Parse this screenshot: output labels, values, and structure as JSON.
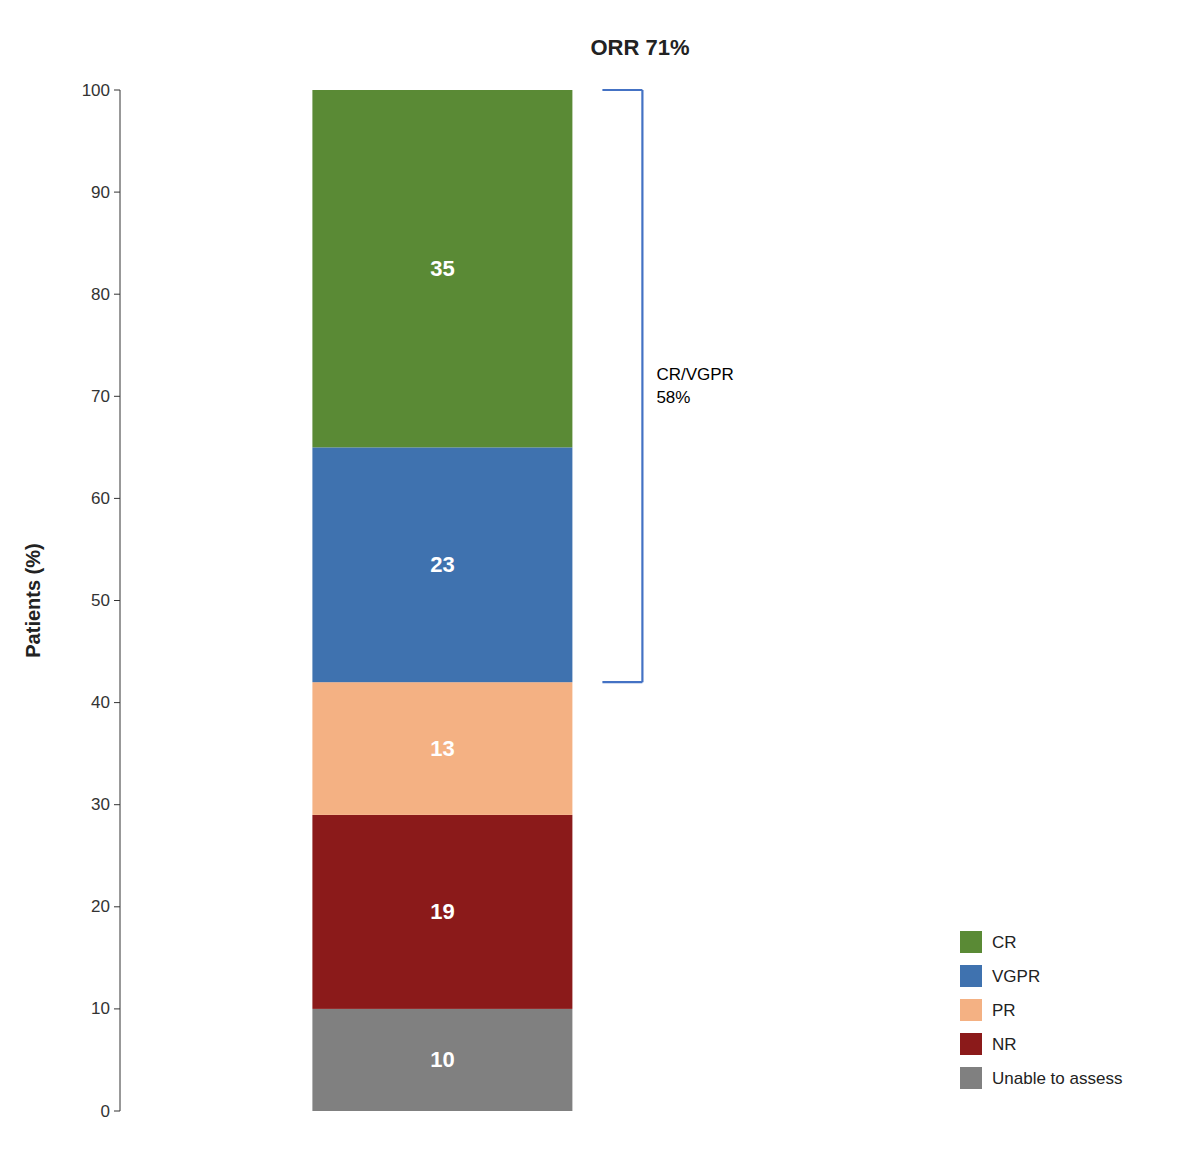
{
  "chart_data": {
    "type": "bar",
    "title": "ORR 71%",
    "ylabel": "Patients (%)",
    "categories": [
      null
    ],
    "series": [
      {
        "name": "Unable to assess",
        "color": "#808080",
        "values": [
          10
        ]
      },
      {
        "name": "NR",
        "color": "#8B1A1A",
        "values": [
          19
        ]
      },
      {
        "name": "PR",
        "color": "#F4B183",
        "values": [
          13
        ]
      },
      {
        "name": "VGPR",
        "color": "#3F72AF",
        "values": [
          23
        ]
      },
      {
        "name": "CR",
        "color": "#5A8A35",
        "values": [
          35
        ]
      }
    ],
    "stacked": true,
    "data_labels": true,
    "grid": false,
    "legend": "lower right",
    "tick_labels": "y",
    "ylim": [
      0,
      100
    ],
    "yticks": [
      0,
      10,
      20,
      30,
      40,
      50,
      60,
      70,
      80,
      90,
      100
    ],
    "annotations": [
      {
        "lines": [
          "CR/VGPR",
          "58%"
        ],
        "ylow": 42,
        "yhigh": 100,
        "color": "#4472C4"
      }
    ]
  }
}
